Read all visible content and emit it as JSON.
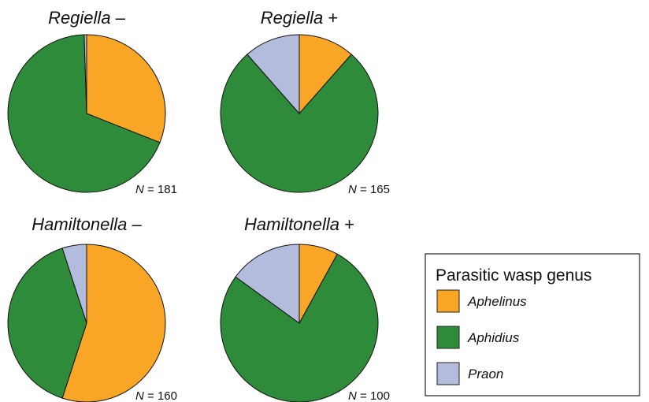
{
  "chart_data": [
    {
      "type": "pie",
      "symbiont": "Regiella",
      "status": "–",
      "n_label": [
        "N",
        "= 181"
      ],
      "categories": [
        "Aphelinus",
        "Aphidius",
        "Praon"
      ],
      "values": [
        31,
        68.5,
        0.5
      ],
      "colors": [
        "#f9a526",
        "#2e8b3a",
        "#b3bcdd"
      ]
    },
    {
      "type": "pie",
      "symbiont": "Regiella",
      "status": "+",
      "n_label": [
        "N",
        "= 165"
      ],
      "categories": [
        "Aphelinus",
        "Aphidius",
        "Praon"
      ],
      "values": [
        11.5,
        77,
        11.5
      ],
      "colors": [
        "#f9a526",
        "#2e8b3a",
        "#b3bcdd"
      ]
    },
    {
      "type": "pie",
      "symbiont": "Hamiltonella",
      "status": "–",
      "n_label": [
        "N",
        "= 160"
      ],
      "categories": [
        "Aphelinus",
        "Aphidius",
        "Praon"
      ],
      "values": [
        55,
        40,
        5
      ],
      "colors": [
        "#f9a526",
        "#2e8b3a",
        "#b3bcdd"
      ]
    },
    {
      "type": "pie",
      "symbiont": "Hamiltonella",
      "status": "+",
      "n_label": [
        "N",
        "= 100"
      ],
      "categories": [
        "Aphelinus",
        "Aphidius",
        "Praon"
      ],
      "values": [
        8,
        77,
        15
      ],
      "colors": [
        "#f9a526",
        "#2e8b3a",
        "#b3bcdd"
      ]
    }
  ],
  "legend": {
    "title": "Parasitic wasp genus"
  }
}
